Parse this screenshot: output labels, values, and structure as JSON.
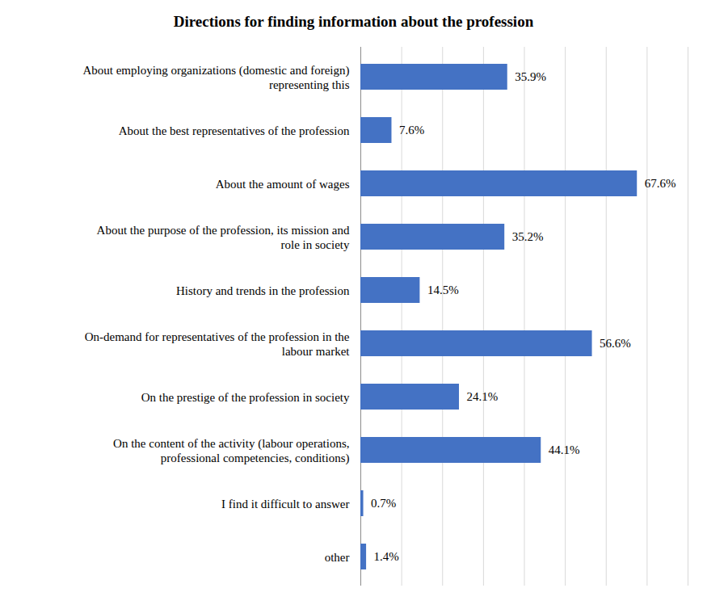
{
  "chart_data": {
    "type": "bar",
    "title": "Directions for finding information about the profession",
    "orientation": "horizontal",
    "categories": [
      "About employing organizations (domestic and foreign) representing this",
      "About the best representatives of the profession",
      "About the amount of wages",
      "About the purpose of the profession, its mission and role in society",
      "History and trends in the profession",
      "On-demand for representatives of the profession in the labour market",
      "On the prestige of the profession in society",
      "On the content of the activity (labour operations, professional competencies, conditions)",
      "I find it difficult to answer",
      "other"
    ],
    "values": [
      35.9,
      7.6,
      67.6,
      35.2,
      14.5,
      56.6,
      24.1,
      44.1,
      0.7,
      1.4
    ],
    "value_labels": [
      "35.9%",
      "7.6%",
      "67.6%",
      "35.2%",
      "14.5%",
      "56.6%",
      "24.1%",
      "44.1%",
      "0.7%",
      "1.4%"
    ],
    "color": "#4472c4",
    "xlim": [
      0,
      80
    ],
    "xticks": [
      0,
      10,
      20,
      30,
      40,
      50,
      60,
      70,
      80
    ],
    "grid": true,
    "data_labels": true,
    "tick_labels": "y"
  }
}
